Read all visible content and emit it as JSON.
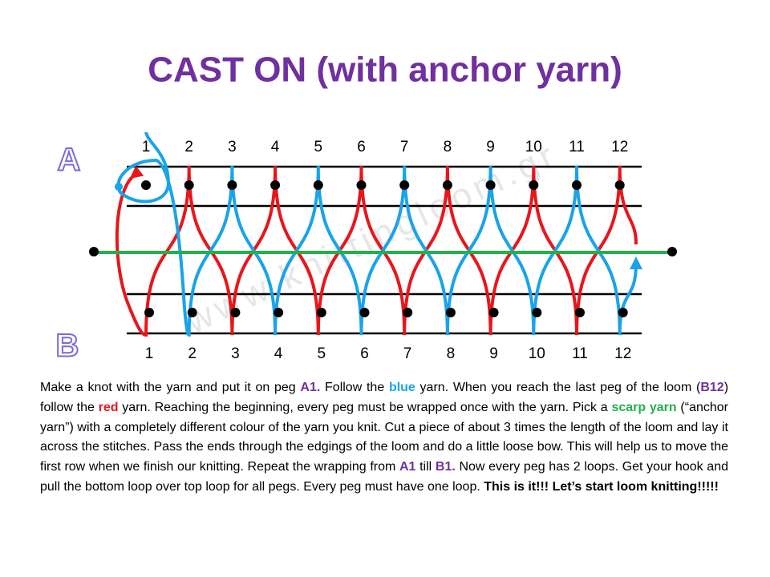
{
  "title": "CAST ON (with anchor yarn)",
  "row_labels": {
    "top": "A",
    "bottom": "B"
  },
  "pegs": {
    "top": [
      1,
      2,
      3,
      4,
      5,
      6,
      7,
      8,
      9,
      10,
      11,
      12
    ],
    "bottom": [
      1,
      2,
      3,
      4,
      5,
      6,
      7,
      8,
      9,
      10,
      11,
      12
    ]
  },
  "watermark": "www.knittingloom.gr",
  "paragraph": [
    "Make a knot with the yarn and put it on peg ",
    "A1.",
    " Follow the ",
    "blue",
    " yarn. When you reach the last peg of the loom (",
    "B12",
    ") follow the ",
    "red",
    " yarn. Reaching the beginning, every peg must be wrapped once with the yarn. Pick a ",
    "scarp yarn",
    " (“anchor yarn”) with a completely different colour of the yarn you knit. Cut a piece of about 3 times the length of the loom and lay it across the stitches. Pass the ends through the edgings of the loom and do a little loose bow. This will help us to move the first row when we finish our knitting.  Repeat the wrapping from ",
    "A1",
    " till ",
    "B1.",
    " Now every peg has 2 loops. Get your hook and pull the bottom loop over top loop for all pegs. Every peg must have one loop. ",
    "This is it!!! Let’s start loom knitting!!!!!"
  ]
}
